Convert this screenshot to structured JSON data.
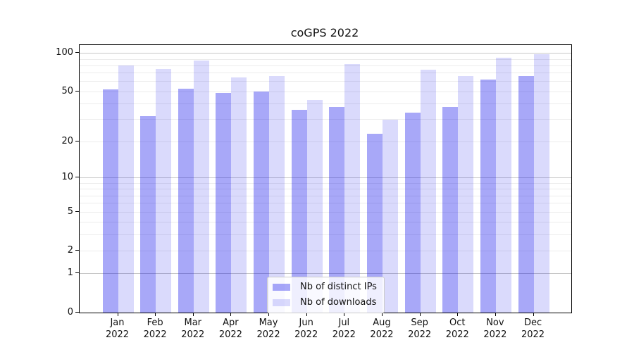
{
  "figure": {
    "title": "coGPS 2022"
  },
  "chart_data": {
    "type": "bar",
    "title": "coGPS 2022",
    "categories": [
      "Jan 2022",
      "Feb 2022",
      "Mar 2022",
      "Apr 2022",
      "May 2022",
      "Jun 2022",
      "Jul 2022",
      "Aug 2022",
      "Sep 2022",
      "Oct 2022",
      "Nov 2022",
      "Dec 2022"
    ],
    "month_names": [
      "Jan",
      "Feb",
      "Mar",
      "Apr",
      "May",
      "Jun",
      "Jul",
      "Aug",
      "Sep",
      "Oct",
      "Nov",
      "Dec"
    ],
    "year": "2022",
    "series": [
      {
        "name": "Nb of distinct IPs",
        "color": "rgba(5,5,235,0.35)",
        "values": [
          52,
          32,
          53,
          49,
          50,
          36,
          38,
          23,
          34,
          38,
          62,
          66
        ]
      },
      {
        "name": "Nb of downloads",
        "color": "rgba(5,5,235,0.15)",
        "values": [
          80,
          75,
          88,
          65,
          66,
          43,
          82,
          30,
          74,
          66,
          92,
          98
        ]
      }
    ],
    "yscale": "log1p",
    "ylim": [
      0,
      116
    ],
    "yticks": [
      0,
      1,
      2,
      5,
      10,
      20,
      50,
      100
    ],
    "ytick_labels": [
      "0",
      "1",
      "2",
      "5",
      "10",
      "20",
      "50",
      "100"
    ],
    "yticks_major_grid": [
      1,
      10,
      100
    ],
    "yminor_grid": [
      3,
      4,
      6,
      7,
      8,
      9,
      30,
      40,
      60,
      70,
      80,
      90
    ],
    "grid": true,
    "xlabel": "",
    "ylabel": "",
    "legend": {
      "labels": [
        "Nb of distinct IPs",
        "Nb of downloads"
      ],
      "position": "lower center"
    }
  },
  "colors": {
    "bar_ips": "rgba(5,5,235,0.35)",
    "bar_downloads": "rgba(5,5,235,0.15)",
    "grid_major": "#c8c8c8",
    "grid_minor": "#ececec",
    "spine": "#000000",
    "text": "#111111",
    "legend_border": "#cccccc"
  }
}
